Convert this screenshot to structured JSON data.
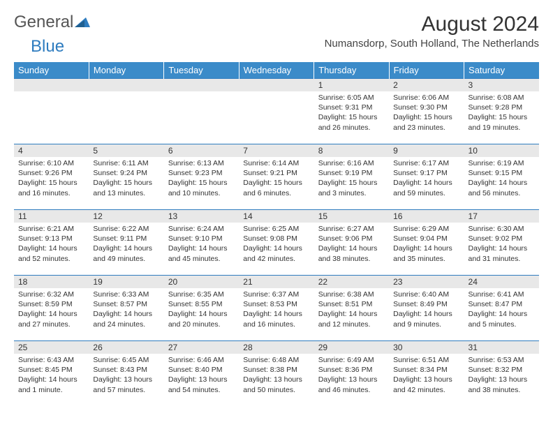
{
  "brand": {
    "general": "General",
    "blue": "Blue"
  },
  "title": "August 2024",
  "location": "Numansdorp, South Holland, The Netherlands",
  "columns": [
    "Sunday",
    "Monday",
    "Tuesday",
    "Wednesday",
    "Thursday",
    "Friday",
    "Saturday"
  ],
  "colors": {
    "header_bg": "#3b8bc9",
    "header_fg": "#ffffff",
    "daynum_bg": "#e8e8e8",
    "rule": "#2e7cbf",
    "text": "#333333",
    "brand_blue": "#2e7cbf"
  },
  "weeks": [
    [
      null,
      null,
      null,
      null,
      {
        "n": "1",
        "sunrise": "Sunrise: 6:05 AM",
        "sunset": "Sunset: 9:31 PM",
        "daylight": "Daylight: 15 hours and 26 minutes."
      },
      {
        "n": "2",
        "sunrise": "Sunrise: 6:06 AM",
        "sunset": "Sunset: 9:30 PM",
        "daylight": "Daylight: 15 hours and 23 minutes."
      },
      {
        "n": "3",
        "sunrise": "Sunrise: 6:08 AM",
        "sunset": "Sunset: 9:28 PM",
        "daylight": "Daylight: 15 hours and 19 minutes."
      }
    ],
    [
      {
        "n": "4",
        "sunrise": "Sunrise: 6:10 AM",
        "sunset": "Sunset: 9:26 PM",
        "daylight": "Daylight: 15 hours and 16 minutes."
      },
      {
        "n": "5",
        "sunrise": "Sunrise: 6:11 AM",
        "sunset": "Sunset: 9:24 PM",
        "daylight": "Daylight: 15 hours and 13 minutes."
      },
      {
        "n": "6",
        "sunrise": "Sunrise: 6:13 AM",
        "sunset": "Sunset: 9:23 PM",
        "daylight": "Daylight: 15 hours and 10 minutes."
      },
      {
        "n": "7",
        "sunrise": "Sunrise: 6:14 AM",
        "sunset": "Sunset: 9:21 PM",
        "daylight": "Daylight: 15 hours and 6 minutes."
      },
      {
        "n": "8",
        "sunrise": "Sunrise: 6:16 AM",
        "sunset": "Sunset: 9:19 PM",
        "daylight": "Daylight: 15 hours and 3 minutes."
      },
      {
        "n": "9",
        "sunrise": "Sunrise: 6:17 AM",
        "sunset": "Sunset: 9:17 PM",
        "daylight": "Daylight: 14 hours and 59 minutes."
      },
      {
        "n": "10",
        "sunrise": "Sunrise: 6:19 AM",
        "sunset": "Sunset: 9:15 PM",
        "daylight": "Daylight: 14 hours and 56 minutes."
      }
    ],
    [
      {
        "n": "11",
        "sunrise": "Sunrise: 6:21 AM",
        "sunset": "Sunset: 9:13 PM",
        "daylight": "Daylight: 14 hours and 52 minutes."
      },
      {
        "n": "12",
        "sunrise": "Sunrise: 6:22 AM",
        "sunset": "Sunset: 9:11 PM",
        "daylight": "Daylight: 14 hours and 49 minutes."
      },
      {
        "n": "13",
        "sunrise": "Sunrise: 6:24 AM",
        "sunset": "Sunset: 9:10 PM",
        "daylight": "Daylight: 14 hours and 45 minutes."
      },
      {
        "n": "14",
        "sunrise": "Sunrise: 6:25 AM",
        "sunset": "Sunset: 9:08 PM",
        "daylight": "Daylight: 14 hours and 42 minutes."
      },
      {
        "n": "15",
        "sunrise": "Sunrise: 6:27 AM",
        "sunset": "Sunset: 9:06 PM",
        "daylight": "Daylight: 14 hours and 38 minutes."
      },
      {
        "n": "16",
        "sunrise": "Sunrise: 6:29 AM",
        "sunset": "Sunset: 9:04 PM",
        "daylight": "Daylight: 14 hours and 35 minutes."
      },
      {
        "n": "17",
        "sunrise": "Sunrise: 6:30 AM",
        "sunset": "Sunset: 9:02 PM",
        "daylight": "Daylight: 14 hours and 31 minutes."
      }
    ],
    [
      {
        "n": "18",
        "sunrise": "Sunrise: 6:32 AM",
        "sunset": "Sunset: 8:59 PM",
        "daylight": "Daylight: 14 hours and 27 minutes."
      },
      {
        "n": "19",
        "sunrise": "Sunrise: 6:33 AM",
        "sunset": "Sunset: 8:57 PM",
        "daylight": "Daylight: 14 hours and 24 minutes."
      },
      {
        "n": "20",
        "sunrise": "Sunrise: 6:35 AM",
        "sunset": "Sunset: 8:55 PM",
        "daylight": "Daylight: 14 hours and 20 minutes."
      },
      {
        "n": "21",
        "sunrise": "Sunrise: 6:37 AM",
        "sunset": "Sunset: 8:53 PM",
        "daylight": "Daylight: 14 hours and 16 minutes."
      },
      {
        "n": "22",
        "sunrise": "Sunrise: 6:38 AM",
        "sunset": "Sunset: 8:51 PM",
        "daylight": "Daylight: 14 hours and 12 minutes."
      },
      {
        "n": "23",
        "sunrise": "Sunrise: 6:40 AM",
        "sunset": "Sunset: 8:49 PM",
        "daylight": "Daylight: 14 hours and 9 minutes."
      },
      {
        "n": "24",
        "sunrise": "Sunrise: 6:41 AM",
        "sunset": "Sunset: 8:47 PM",
        "daylight": "Daylight: 14 hours and 5 minutes."
      }
    ],
    [
      {
        "n": "25",
        "sunrise": "Sunrise: 6:43 AM",
        "sunset": "Sunset: 8:45 PM",
        "daylight": "Daylight: 14 hours and 1 minute."
      },
      {
        "n": "26",
        "sunrise": "Sunrise: 6:45 AM",
        "sunset": "Sunset: 8:43 PM",
        "daylight": "Daylight: 13 hours and 57 minutes."
      },
      {
        "n": "27",
        "sunrise": "Sunrise: 6:46 AM",
        "sunset": "Sunset: 8:40 PM",
        "daylight": "Daylight: 13 hours and 54 minutes."
      },
      {
        "n": "28",
        "sunrise": "Sunrise: 6:48 AM",
        "sunset": "Sunset: 8:38 PM",
        "daylight": "Daylight: 13 hours and 50 minutes."
      },
      {
        "n": "29",
        "sunrise": "Sunrise: 6:49 AM",
        "sunset": "Sunset: 8:36 PM",
        "daylight": "Daylight: 13 hours and 46 minutes."
      },
      {
        "n": "30",
        "sunrise": "Sunrise: 6:51 AM",
        "sunset": "Sunset: 8:34 PM",
        "daylight": "Daylight: 13 hours and 42 minutes."
      },
      {
        "n": "31",
        "sunrise": "Sunrise: 6:53 AM",
        "sunset": "Sunset: 8:32 PM",
        "daylight": "Daylight: 13 hours and 38 minutes."
      }
    ]
  ]
}
